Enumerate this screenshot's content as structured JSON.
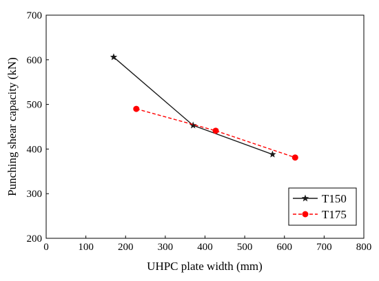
{
  "chart_data": {
    "type": "line",
    "xlabel": "UHPC plate width (mm)",
    "ylabel": "Punching shear capacity  (kN)",
    "xlim": [
      0,
      800
    ],
    "ylim": [
      200,
      700
    ],
    "xticks": [
      0,
      100,
      200,
      300,
      400,
      500,
      600,
      700,
      800
    ],
    "yticks": [
      200,
      300,
      400,
      500,
      600,
      700
    ],
    "grid": false,
    "legend_position": "bottom-right",
    "series": [
      {
        "name": "T150",
        "color": "#1a1a1a",
        "line_style": "solid",
        "marker": "star",
        "x": [
          170,
          370,
          570
        ],
        "y": [
          606,
          453,
          388
        ]
      },
      {
        "name": "T175",
        "color": "#ff0000",
        "line_style": "dashed",
        "marker": "circle",
        "x": [
          227,
          427,
          627
        ],
        "y": [
          490,
          441,
          381
        ]
      }
    ]
  }
}
